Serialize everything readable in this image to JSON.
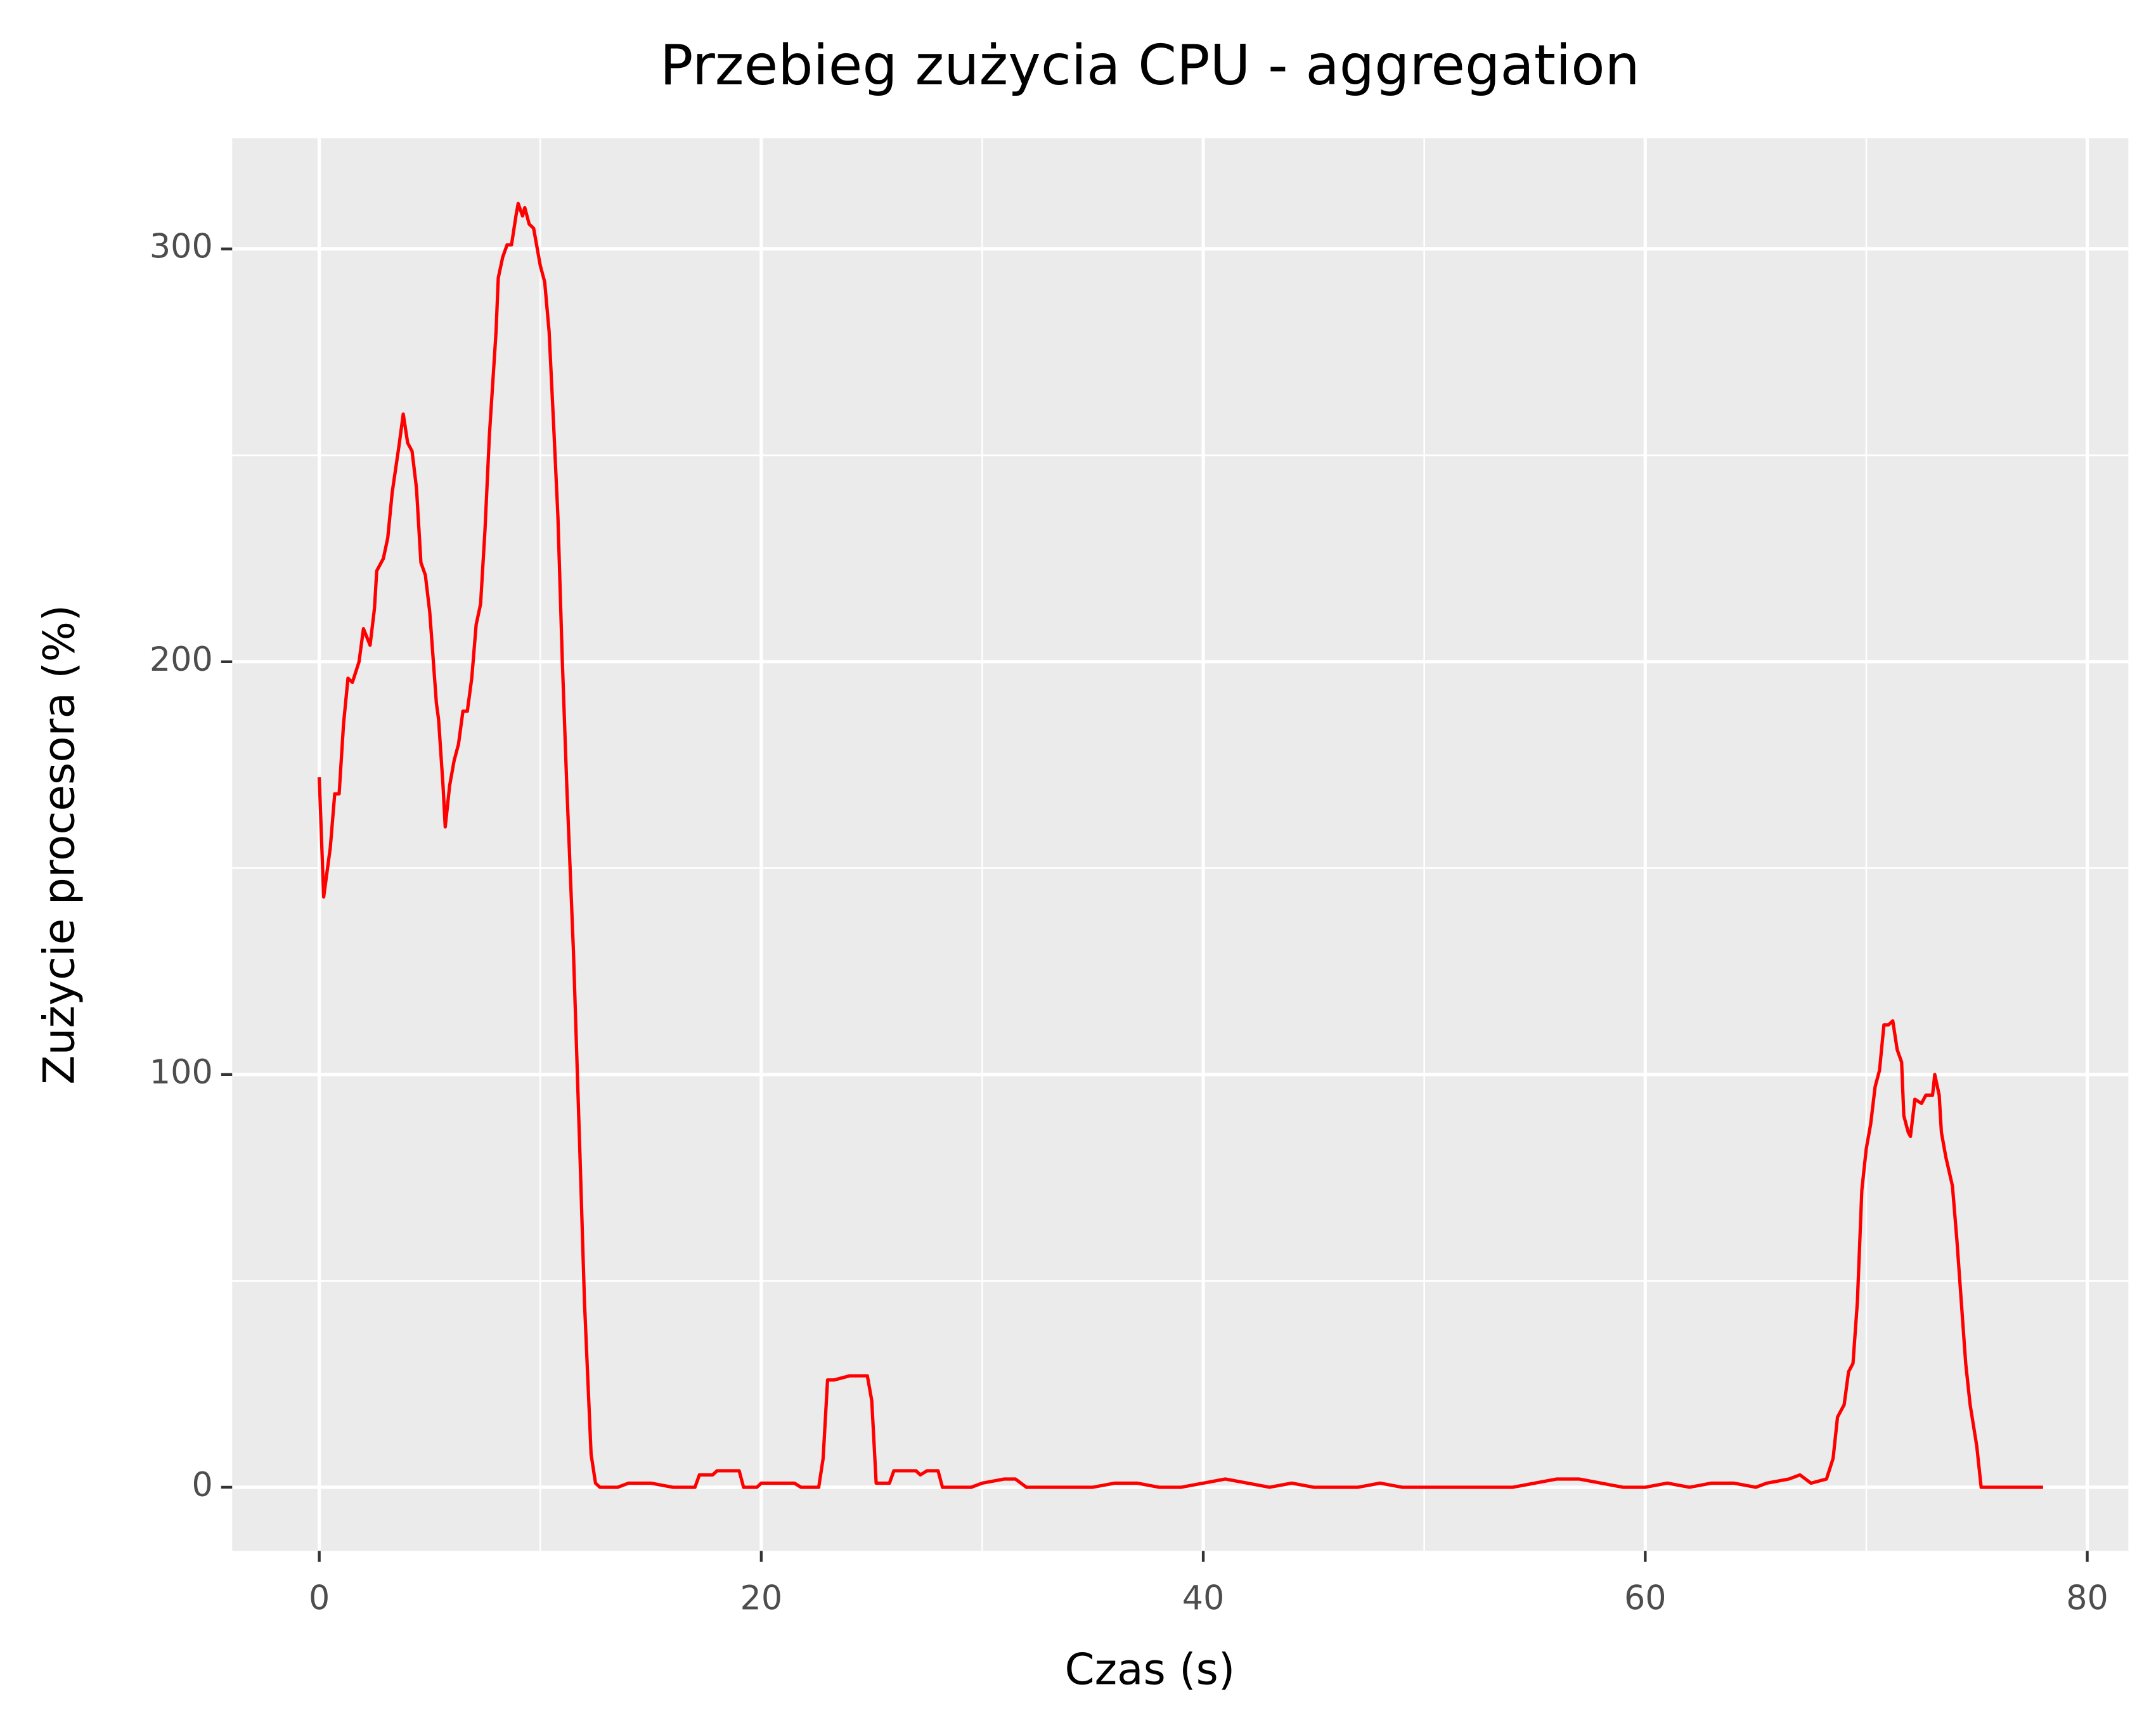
{
  "chart_data": {
    "type": "line",
    "title": "Przebieg zużycia CPU - aggregation",
    "xlabel": "Czas (s)",
    "ylabel": "Zużycie procesora (%)",
    "color": "#ff0000",
    "grid": true,
    "xlim": [
      -3.94,
      81.86
    ],
    "ylim": [
      -15.4,
      326.8
    ],
    "xticks": [
      0,
      20,
      40,
      60,
      80
    ],
    "yticks": [
      0,
      100,
      200,
      300
    ],
    "x": [
      0,
      0.2,
      0.5,
      0.7,
      0.9,
      1.1,
      1.3,
      1.5,
      1.8,
      2.0,
      2.3,
      2.5,
      2.6,
      2.9,
      3.1,
      3.3,
      3.6,
      3.8,
      4.0,
      4.2,
      4.4,
      4.6,
      4.8,
      5.0,
      5.3,
      5.4,
      5.6,
      5.7,
      5.9,
      6.1,
      6.3,
      6.5,
      6.7,
      6.9,
      7.1,
      7.3,
      7.5,
      7.7,
      8.0,
      8.1,
      8.3,
      8.5,
      8.7,
      8.9,
      9.0,
      9.2,
      9.3,
      9.5,
      9.7,
      9.8,
      10.0,
      10.2,
      10.4,
      10.6,
      10.8,
      11.0,
      11.2,
      11.5,
      11.8,
      12.0,
      12.3,
      12.5,
      12.7,
      13.5,
      14.0,
      15.0,
      16.0,
      17.0,
      17.2,
      17.8,
      18.0,
      19.0,
      19.2,
      19.8,
      20.0,
      21.5,
      21.8,
      22.6,
      22.8,
      23.0,
      23.3,
      24.0,
      24.8,
      25.0,
      25.2,
      25.8,
      26.0,
      27.0,
      27.2,
      27.5,
      28.0,
      28.2,
      29.0,
      29.5,
      30.0,
      31.0,
      31.5,
      32.0,
      33.0,
      34.0,
      35.0,
      36.0,
      37.0,
      38.0,
      39.0,
      40.0,
      41.0,
      42.0,
      43.0,
      44.0,
      45.0,
      46.0,
      47.0,
      48.0,
      49.0,
      50.0,
      51.0,
      52.0,
      53.0,
      54.0,
      55.0,
      56.0,
      57.0,
      58.0,
      59.0,
      60.0,
      61.0,
      62.0,
      63.0,
      64.0,
      65.0,
      65.5,
      66.5,
      67.0,
      67.5,
      68.2,
      68.5,
      68.7,
      69.0,
      69.2,
      69.4,
      69.6,
      69.8,
      70.0,
      70.2,
      70.4,
      70.6,
      70.8,
      71.0,
      71.2,
      71.4,
      71.6,
      71.7,
      71.9,
      72.0,
      72.2,
      72.5,
      72.7,
      73.0,
      73.1,
      73.3,
      73.4,
      73.6,
      73.9,
      74.1,
      74.5,
      74.7,
      75.0,
      75.2,
      78.0
    ],
    "values": [
      172,
      143,
      155,
      168,
      168,
      185,
      196,
      195,
      200,
      208,
      204,
      213,
      222,
      225,
      230,
      241,
      252,
      260,
      253,
      251,
      242,
      224,
      221,
      212,
      190,
      186,
      170,
      160,
      170,
      176,
      180,
      188,
      188,
      196,
      209,
      214,
      232,
      255,
      280,
      293,
      298,
      301,
      301,
      308,
      311,
      308,
      310,
      306,
      305,
      302,
      296,
      292,
      280,
      258,
      235,
      200,
      170,
      130,
      80,
      45,
      8,
      1,
      0,
      0,
      1,
      1,
      0,
      0,
      3,
      3,
      4,
      4,
      0,
      0,
      1,
      1,
      0,
      0,
      7,
      26,
      26,
      27,
      27,
      21,
      1,
      1,
      4,
      4,
      3,
      4,
      4,
      0,
      0,
      0,
      1,
      2,
      2,
      0,
      0,
      0,
      0,
      1,
      1,
      0,
      0,
      1,
      2,
      1,
      0,
      1,
      0,
      0,
      0,
      1,
      0,
      0,
      0,
      0,
      0,
      0,
      1,
      2,
      2,
      1,
      0,
      0,
      1,
      0,
      1,
      1,
      0,
      1,
      2,
      3,
      1,
      2,
      7,
      17,
      20,
      28,
      30,
      45,
      72,
      82,
      88,
      97,
      101,
      112,
      112,
      113,
      106,
      103,
      90,
      86,
      85,
      94,
      93,
      95,
      95,
      100,
      95,
      86,
      80,
      73,
      60,
      30,
      20,
      10,
      0,
      0
    ]
  }
}
